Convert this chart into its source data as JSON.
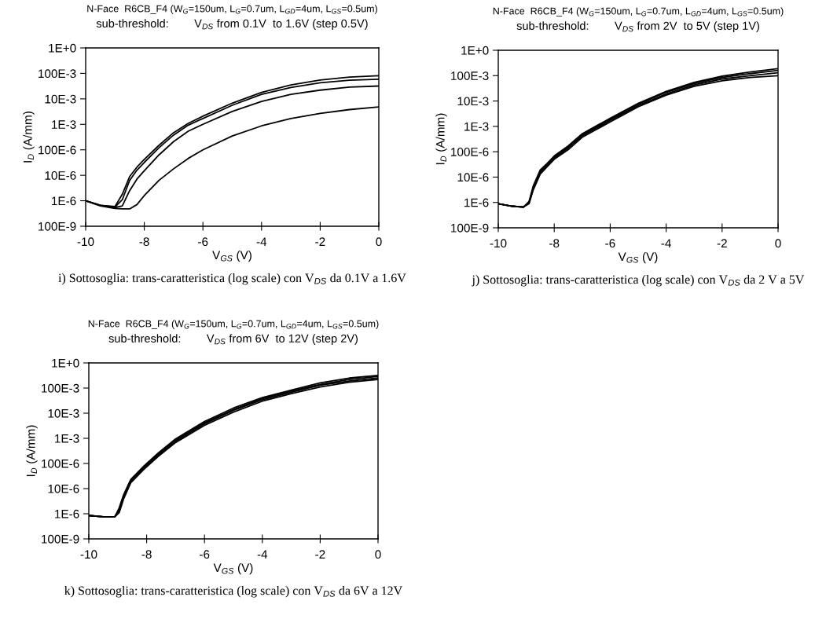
{
  "chart_data": [
    {
      "type": "line",
      "title": "N-Face  R6CB_F4 (W$_{G}$=150um, L$_{G}$=0.7um, L$_{GD}$=4um, L$_{GS}$=0.5um)",
      "subtitle": "sub-threshold:        V$_{DS}$ from 0.1V  to 1.6V (step 0.5V)",
      "xlabel": "V$_{GS}$ (V)",
      "ylabel": "I$_{D}$ (A/mm)",
      "annotations": [
        "i) Sottosoglia: trans-caratteristica (log scale) con V$_{DS}$ da 0.1V a 1.6V"
      ],
      "x": [
        -10,
        -9.5,
        -9,
        -8.75,
        -8.5,
        -8.25,
        -8,
        -7.5,
        -7,
        -6.5,
        -6,
        -5,
        -4,
        -3,
        -2,
        -1,
        0
      ],
      "series": [
        {
          "color": "#000000",
          "values": [
            1e-06,
            6.6e-07,
            5.9e-07,
            1.8e-06,
            8.9e-06,
            2.1e-05,
            4.2e-05,
            0.00015,
            0.00047,
            0.0011,
            0.0021,
            0.0068,
            0.018,
            0.035,
            0.055,
            0.072,
            0.081
          ]
        },
        {
          "color": "#000000",
          "values": [
            1e-06,
            6.6e-07,
            5.6e-07,
            1.1e-06,
            6.3e-06,
            1.6e-05,
            3.2e-05,
            0.00012,
            0.00038,
            0.00093,
            0.0017,
            0.0056,
            0.015,
            0.028,
            0.043,
            0.054,
            0.059
          ]
        },
        {
          "color": "#000000",
          "values": [
            1e-06,
            6.6e-07,
            5.4e-07,
            6.3e-07,
            2.5e-06,
            7.1e-06,
            1.5e-05,
            6.3e-05,
            0.00021,
            0.00054,
            0.001,
            0.0032,
            0.0079,
            0.015,
            0.022,
            0.029,
            0.032
          ]
        },
        {
          "color": "#000000",
          "values": [
            1e-06,
            6.3e-07,
            5e-07,
            4.8e-07,
            4.8e-07,
            7.1e-07,
            1.6e-06,
            6.3e-06,
            1.8e-05,
            4.6e-05,
            0.0001,
            0.00035,
            0.00087,
            0.0017,
            0.0027,
            0.0038,
            0.0048
          ]
        }
      ],
      "xlim": [
        -10,
        0
      ],
      "xticks": [
        -10,
        -8,
        -6,
        -4,
        -2,
        0
      ],
      "ylim": [
        1e-07,
        1
      ],
      "log": "y",
      "marker": "none",
      "line_style": "solid",
      "yticks": [
        {
          "value": 1e-07,
          "label": "100E-9"
        },
        {
          "value": 1e-06,
          "label": "1E-6"
        },
        {
          "value": 1e-05,
          "label": "10E-6"
        },
        {
          "value": 0.0001,
          "label": "100E-6"
        },
        {
          "value": 0.001,
          "label": "1E-3"
        },
        {
          "value": 0.01,
          "label": "10E-3"
        },
        {
          "value": 0.1,
          "label": "100E-3"
        },
        {
          "value": 1,
          "label": "1E+0"
        }
      ]
    },
    {
      "type": "line",
      "title": "N-Face  R6CB_F4 (W$_{G}$=150um, L$_{G}$=0.7um, L$_{GD}$=4um, L$_{GS}$=0.5um)",
      "subtitle": "sub-threshold:        V$_{DS}$ from 2V  to 5V (step 1V)",
      "xlabel": "V$_{GS}$ (V)",
      "ylabel": "I$_{D}$ (A/mm)",
      "annotations": [
        "j) Sottosoglia: trans-caratteristica (log scale) con V$_{DS}$ da 2 V a 5V"
      ],
      "x": [
        -10,
        -9.5,
        -9.1,
        -8.9,
        -8.75,
        -8.5,
        -8.25,
        -8,
        -7.5,
        -7,
        -6,
        -5,
        -4,
        -3,
        -2,
        -1,
        0
      ],
      "series": [
        {
          "color": "#000000",
          "values": [
            8.9e-07,
            7.1e-07,
            6.6e-07,
            1.1e-06,
            4.5e-06,
            1.9e-05,
            3.5e-05,
            6.8e-05,
            0.00017,
            0.00051,
            0.0021,
            0.0081,
            0.024,
            0.054,
            0.095,
            0.14,
            0.19
          ]
        },
        {
          "color": "#000000",
          "values": [
            8.9e-07,
            7.1e-07,
            6.6e-07,
            1e-06,
            3.9e-06,
            1.7e-05,
            3.2e-05,
            6.2e-05,
            0.00015,
            0.00046,
            0.0019,
            0.0074,
            0.022,
            0.049,
            0.085,
            0.12,
            0.16
          ]
        },
        {
          "color": "#000000",
          "values": [
            8.9e-07,
            7.1e-07,
            6.6e-07,
            9.5e-07,
            3.5e-06,
            1.5e-05,
            2.9e-05,
            5.6e-05,
            0.00014,
            0.00042,
            0.0017,
            0.0066,
            0.019,
            0.043,
            0.074,
            0.1,
            0.13
          ]
        },
        {
          "color": "#000000",
          "values": [
            8.9e-07,
            7.1e-07,
            6.6e-07,
            9e-07,
            3.1e-06,
            1.3e-05,
            2.6e-05,
            5e-05,
            0.00012,
            0.00037,
            0.0015,
            0.0059,
            0.017,
            0.038,
            0.063,
            0.085,
            0.1
          ]
        }
      ],
      "xlim": [
        -10,
        0
      ],
      "xticks": [
        -10,
        -8,
        -6,
        -4,
        -2,
        0
      ],
      "ylim": [
        1e-07,
        1
      ],
      "log": "y",
      "marker": "none",
      "line_style": "solid",
      "yticks": [
        {
          "value": 1e-07,
          "label": "100E-9"
        },
        {
          "value": 1e-06,
          "label": "1E-6"
        },
        {
          "value": 1e-05,
          "label": "10E-6"
        },
        {
          "value": 0.0001,
          "label": "100E-6"
        },
        {
          "value": 0.001,
          "label": "1E-3"
        },
        {
          "value": 0.01,
          "label": "10E-3"
        },
        {
          "value": 0.1,
          "label": "100E-3"
        },
        {
          "value": 1,
          "label": "1E+0"
        }
      ]
    },
    {
      "type": "line",
      "title": "N-Face  R6CB_F4 (W$_{G}$=150um, L$_{G}$=0.7um, L$_{GD}$=4um, L$_{GS}$=0.5um)",
      "subtitle": "sub-threshold:        V$_{DS}$ from 6V  to 12V (step 2V)",
      "xlabel": "V$_{GS}$ (V)",
      "ylabel": "I$_{D}$ (A/mm)",
      "annotations": [
        "k) Sottosoglia: trans-caratteristica (log scale) con V$_{DS}$ da 6V a 12V"
      ],
      "x": [
        -10,
        -9.5,
        -9.1,
        -8.95,
        -8.8,
        -8.55,
        -8.1,
        -7.6,
        -7,
        -6,
        -5,
        -4,
        -3,
        -2,
        -1,
        0
      ],
      "series": [
        {
          "color": "#000000",
          "values": [
            8.5e-07,
            7.6e-07,
            7.6e-07,
            1.7e-06,
            5.6e-06,
            2.3e-05,
            7.8e-05,
            0.00026,
            0.00095,
            0.0047,
            0.016,
            0.042,
            0.083,
            0.16,
            0.25,
            0.32
          ]
        },
        {
          "color": "#000000",
          "values": [
            8.5e-07,
            7.6e-07,
            7.6e-07,
            1.5e-06,
            5e-06,
            2.1e-05,
            7.1e-05,
            0.00023,
            0.00085,
            0.0042,
            0.014,
            0.038,
            0.076,
            0.14,
            0.22,
            0.29
          ]
        },
        {
          "color": "#000000",
          "values": [
            8.5e-07,
            7.6e-07,
            7.6e-07,
            1.3e-06,
            4.4e-06,
            1.9e-05,
            6.4e-05,
            0.00021,
            0.00076,
            0.0038,
            0.013,
            0.034,
            0.068,
            0.13,
            0.19,
            0.25
          ]
        },
        {
          "color": "#000000",
          "values": [
            8.5e-07,
            7.6e-07,
            7.6e-07,
            1.1e-06,
            3.8e-06,
            1.7e-05,
            5.8e-05,
            0.00019,
            0.00068,
            0.0033,
            0.011,
            0.03,
            0.06,
            0.11,
            0.17,
            0.22
          ]
        }
      ],
      "xlim": [
        -10,
        0
      ],
      "xticks": [
        -10,
        -8,
        -6,
        -4,
        -2,
        0
      ],
      "ylim": [
        1e-07,
        1
      ],
      "log": "y",
      "marker": "none",
      "line_style": "solid",
      "yticks": [
        {
          "value": 1e-07,
          "label": "100E-9"
        },
        {
          "value": 1e-06,
          "label": "1E-6"
        },
        {
          "value": 1e-05,
          "label": "10E-6"
        },
        {
          "value": 0.0001,
          "label": "100E-6"
        },
        {
          "value": 0.001,
          "label": "1E-3"
        },
        {
          "value": 0.01,
          "label": "10E-3"
        },
        {
          "value": 0.1,
          "label": "100E-3"
        },
        {
          "value": 1,
          "label": "1E+0"
        }
      ]
    }
  ]
}
